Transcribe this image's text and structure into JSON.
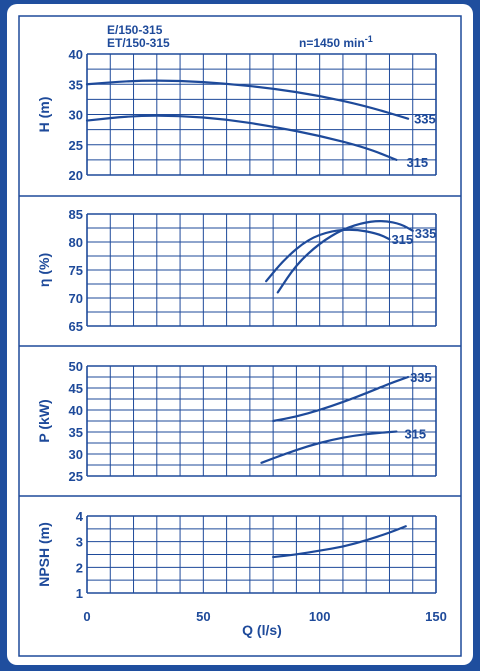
{
  "header": {
    "model_line1": "E/150-315",
    "model_line2": "ET/150-315",
    "speed": "n=1450 min",
    "speed_exp": "-1"
  },
  "colors": {
    "accent": "#1e4a9a",
    "frame": "#1f4e9e",
    "background": "#ffffff"
  },
  "chart_data": [
    {
      "type": "line",
      "id": "head",
      "ylabel": "H (m)",
      "ylim": [
        20,
        40
      ],
      "yticks": [
        20,
        25,
        30,
        35,
        40
      ],
      "series": [
        {
          "name": "335",
          "points": [
            [
              0,
              35
            ],
            [
              20,
              35.6
            ],
            [
              40,
              35.6
            ],
            [
              60,
              35.1
            ],
            [
              80,
              34.3
            ],
            [
              100,
              33.1
            ],
            [
              120,
              31.4
            ],
            [
              138,
              29.3
            ]
          ]
        },
        {
          "name": "315",
          "points": [
            [
              0,
              29.0
            ],
            [
              20,
              29.8
            ],
            [
              40,
              29.8
            ],
            [
              60,
              29.2
            ],
            [
              80,
              28.0
            ],
            [
              100,
              26.5
            ],
            [
              120,
              24.5
            ],
            [
              133,
              22.5
            ]
          ]
        }
      ]
    },
    {
      "type": "line",
      "id": "efficiency",
      "ylabel": "η (%)",
      "ylim": [
        65,
        85
      ],
      "yticks": [
        65,
        70,
        75,
        80,
        85
      ],
      "series": [
        {
          "name": "335",
          "points": [
            [
              82,
              71.0
            ],
            [
              90,
              76.0
            ],
            [
              100,
              79.8
            ],
            [
              110,
              82.3
            ],
            [
              120,
              83.6
            ],
            [
              128,
              83.8
            ],
            [
              135,
              83.2
            ],
            [
              140,
              82.0
            ]
          ]
        },
        {
          "name": "315",
          "points": [
            [
              77,
              73.0
            ],
            [
              85,
              77.0
            ],
            [
              95,
              80.5
            ],
            [
              105,
              82.0
            ],
            [
              115,
              82.3
            ],
            [
              125,
              81.5
            ],
            [
              130,
              80.5
            ]
          ]
        }
      ]
    },
    {
      "type": "line",
      "id": "power",
      "ylabel": "P (kW)",
      "ylim": [
        25,
        50
      ],
      "yticks": [
        25,
        30,
        35,
        40,
        45,
        50
      ],
      "series": [
        {
          "name": "335",
          "points": [
            [
              80,
              37.5
            ],
            [
              90,
              38.5
            ],
            [
              100,
              40.0
            ],
            [
              110,
              41.8
            ],
            [
              120,
              43.8
            ],
            [
              130,
              46.0
            ],
            [
              138,
              47.5
            ]
          ]
        },
        {
          "name": "315",
          "points": [
            [
              75,
              28.0
            ],
            [
              85,
              30.0
            ],
            [
              95,
              31.8
            ],
            [
              105,
              33.2
            ],
            [
              115,
              34.2
            ],
            [
              125,
              34.8
            ],
            [
              133,
              35.1
            ]
          ]
        }
      ]
    },
    {
      "type": "line",
      "id": "npsh",
      "ylabel": "NPSH (m)",
      "ylim": [
        1,
        4
      ],
      "yticks": [
        1,
        2,
        3,
        4
      ],
      "xlabel": "Q (l/s)",
      "xlim": [
        0,
        150
      ],
      "xticks": [
        0,
        50,
        100,
        150
      ],
      "series": [
        {
          "name": "NPSH",
          "points": [
            [
              80,
              2.4
            ],
            [
              90,
              2.5
            ],
            [
              100,
              2.65
            ],
            [
              110,
              2.8
            ],
            [
              120,
              3.05
            ],
            [
              130,
              3.35
            ],
            [
              137,
              3.6
            ]
          ]
        }
      ]
    }
  ]
}
